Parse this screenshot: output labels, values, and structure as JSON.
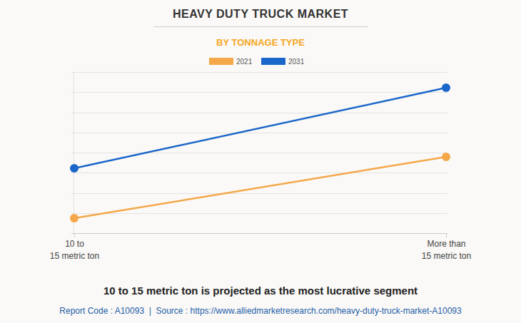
{
  "chart_data": {
    "type": "line",
    "title": "HEAVY DUTY TRUCK MARKET",
    "subtitle": "BY TONNAGE TYPE",
    "annotation": "10 to 15 metric ton is projected as the most lucrative segment",
    "source": "Report Code : A10093  |  Source : https://www.alliedmarketresearch.com/heavy-duty-truck-market-A10093",
    "categories": [
      "10 to\n15 metric ton",
      "More than\n15 metric ton"
    ],
    "series": [
      {
        "name": "2021",
        "color": "#f4a84a",
        "marker": "circle",
        "values": [
          0.74,
          3.79
        ]
      },
      {
        "name": "2031",
        "color": "#1b66c9",
        "marker": "circle",
        "values": [
          3.22,
          7.22
        ]
      }
    ],
    "ylim": [
      0,
      8
    ],
    "yticks": [
      0,
      1,
      2,
      3,
      4,
      5,
      6,
      7,
      8
    ],
    "grid": true,
    "legend": "top",
    "tick_labels": "x"
  }
}
